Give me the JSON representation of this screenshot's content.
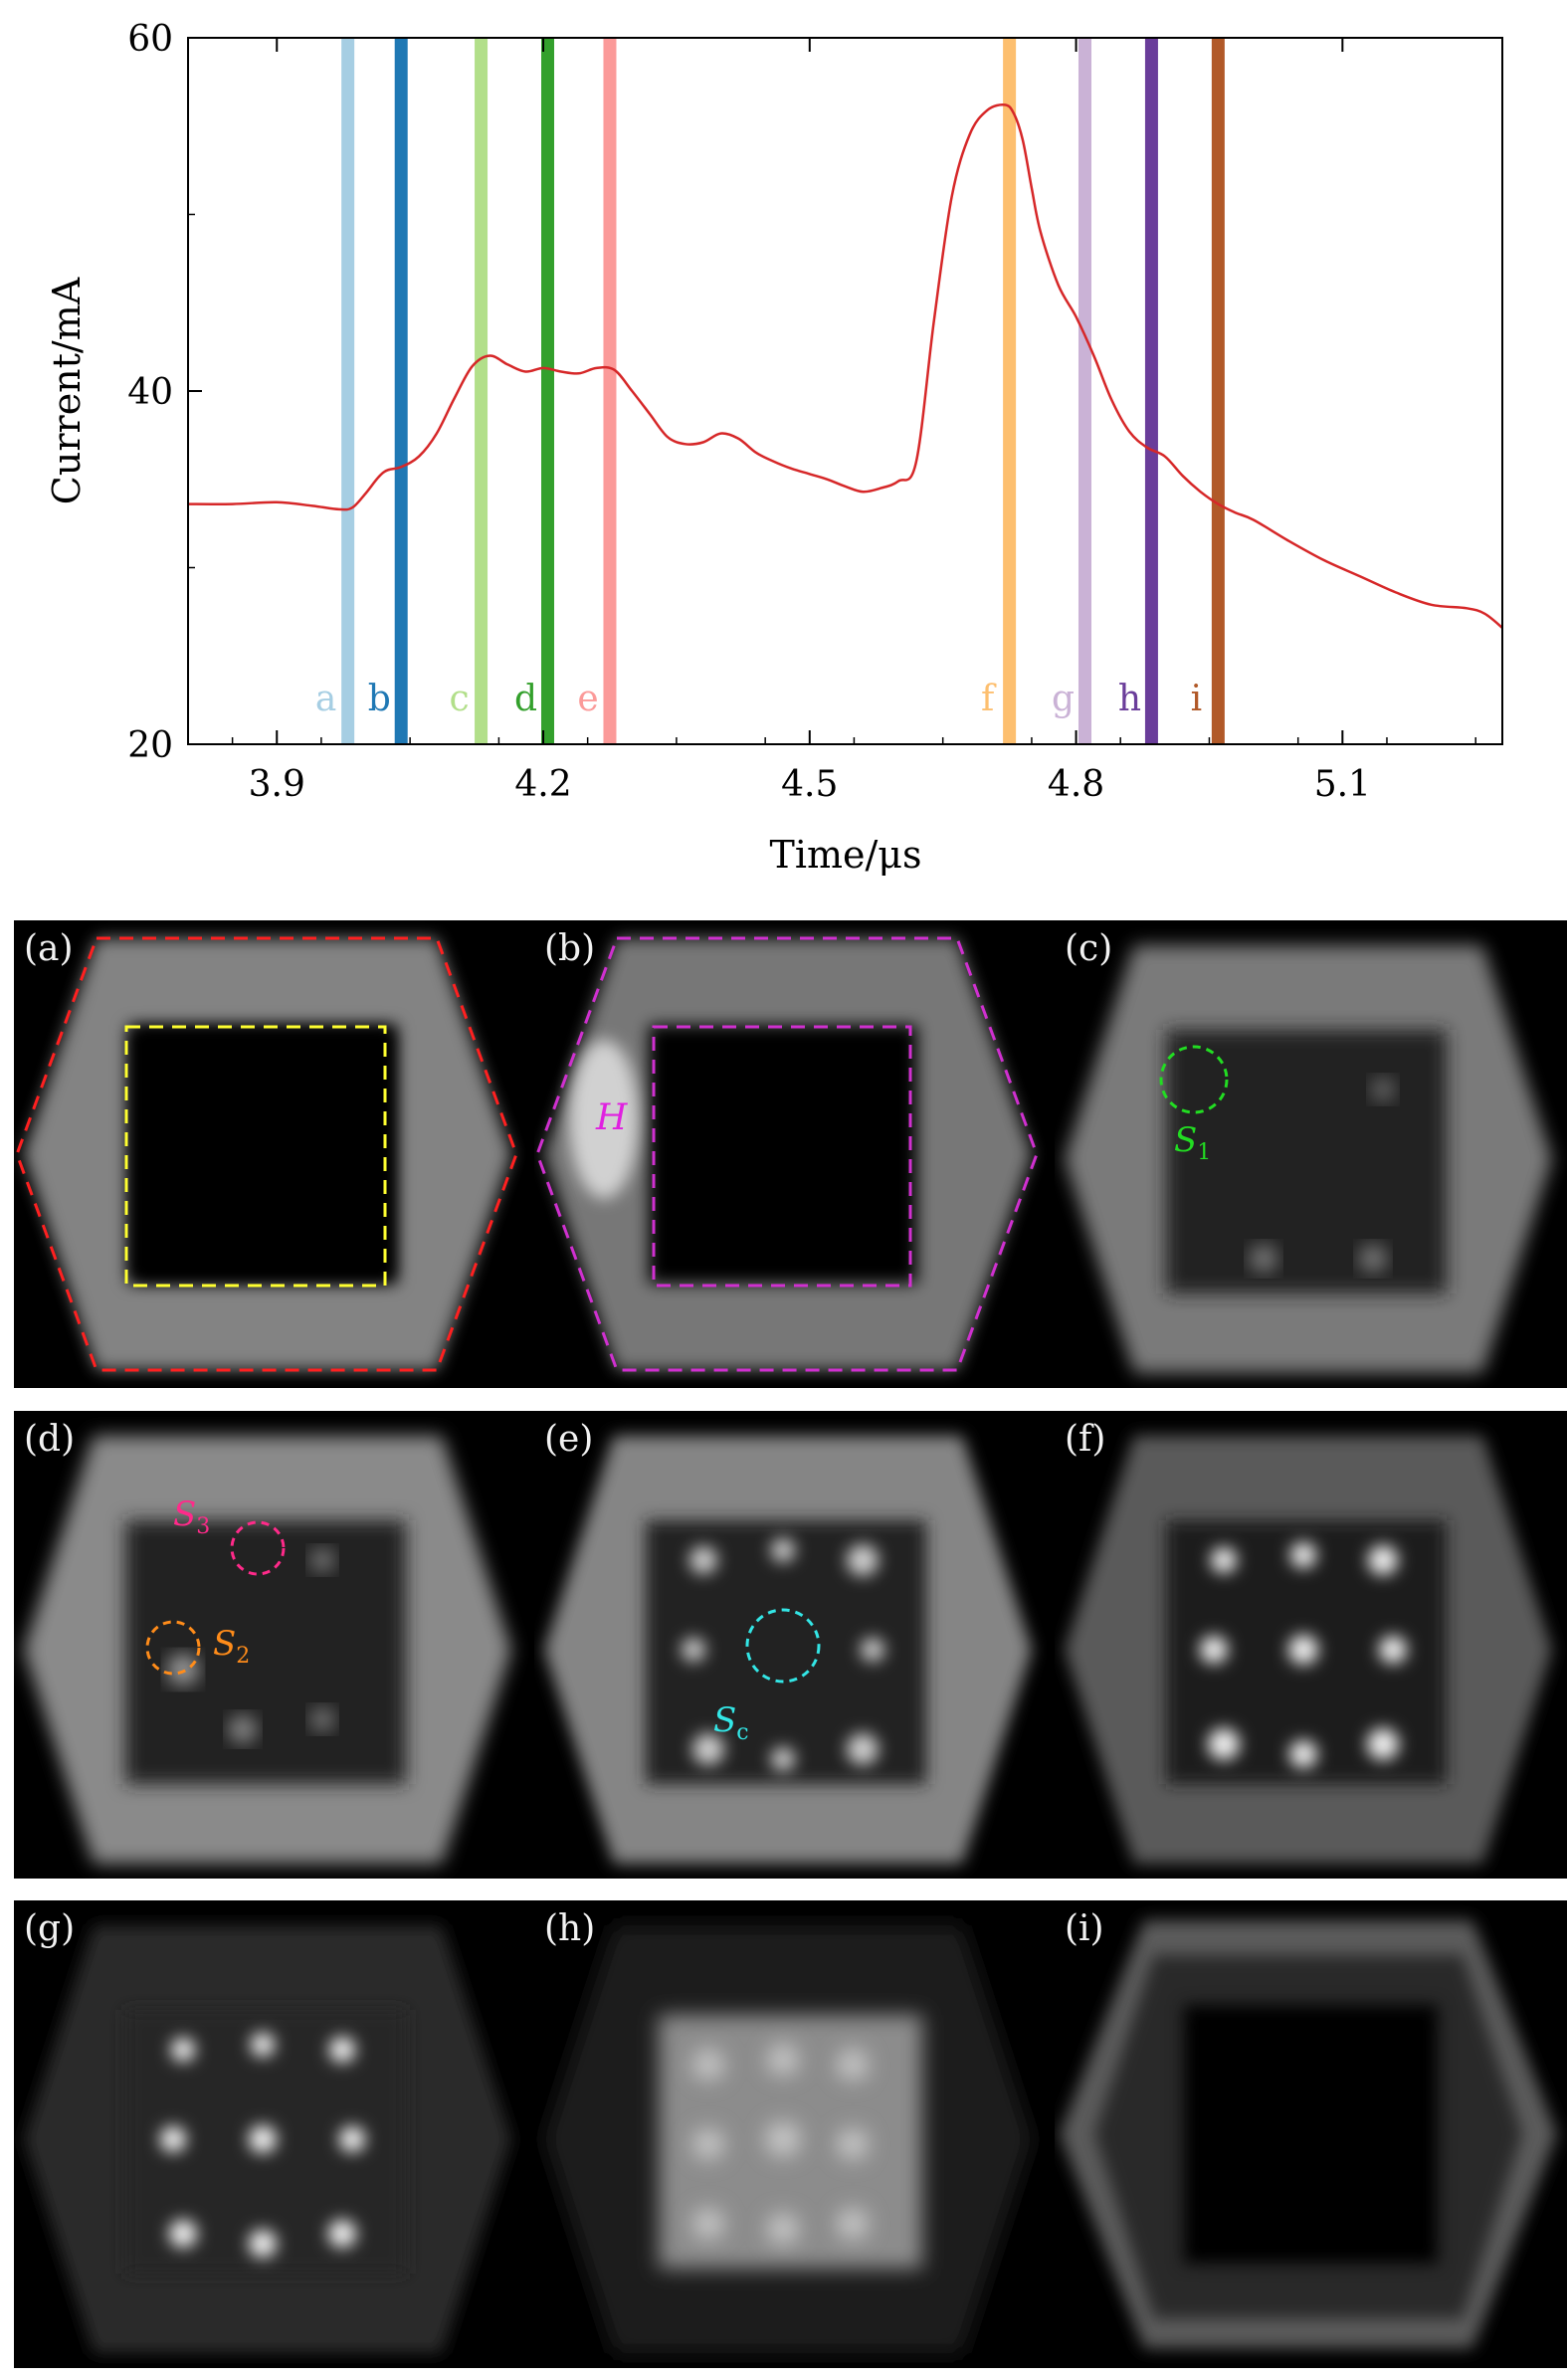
{
  "chart_data": {
    "type": "line",
    "title": "",
    "xlabel": "Time/μs",
    "ylabel": "Current/mA",
    "xlim": [
      3.8,
      5.28
    ],
    "ylim": [
      20,
      60
    ],
    "xticks": [
      "3.9",
      "4.2",
      "4.5",
      "4.8",
      "5.1"
    ],
    "xtick_values": [
      3.9,
      4.2,
      4.5,
      4.8,
      5.1
    ],
    "yticks": [
      "20",
      "40",
      "60"
    ],
    "ytick_values": [
      20,
      40,
      60
    ],
    "series": [
      {
        "name": "current",
        "color": "#d62728",
        "x": [
          3.8,
          3.85,
          3.9,
          3.94,
          3.97,
          3.985,
          4.0,
          4.02,
          4.04,
          4.06,
          4.08,
          4.1,
          4.12,
          4.14,
          4.16,
          4.18,
          4.2,
          4.22,
          4.24,
          4.26,
          4.28,
          4.3,
          4.32,
          4.34,
          4.36,
          4.38,
          4.4,
          4.42,
          4.44,
          4.46,
          4.48,
          4.5,
          4.52,
          4.54,
          4.56,
          4.58,
          4.6,
          4.62,
          4.64,
          4.66,
          4.68,
          4.7,
          4.72,
          4.73,
          4.74,
          4.75,
          4.76,
          4.78,
          4.8,
          4.82,
          4.84,
          4.86,
          4.88,
          4.9,
          4.92,
          4.94,
          4.96,
          4.98,
          5.0,
          5.04,
          5.08,
          5.12,
          5.16,
          5.2,
          5.24,
          5.26,
          5.28
        ],
        "y": [
          33.6,
          33.6,
          33.7,
          33.5,
          33.3,
          33.4,
          34.2,
          35.4,
          35.7,
          36.3,
          37.6,
          39.6,
          41.4,
          42.0,
          41.5,
          41.1,
          41.3,
          41.1,
          41.0,
          41.3,
          41.2,
          40.0,
          38.7,
          37.4,
          37.0,
          37.1,
          37.6,
          37.3,
          36.5,
          36.0,
          35.6,
          35.3,
          35.0,
          34.6,
          34.3,
          34.5,
          34.9,
          36.0,
          44.0,
          51.0,
          54.5,
          55.9,
          56.2,
          55.7,
          54.2,
          51.5,
          49.0,
          46.0,
          44.2,
          42.0,
          39.5,
          37.7,
          36.8,
          36.3,
          35.2,
          34.3,
          33.6,
          33.1,
          32.7,
          31.5,
          30.4,
          29.5,
          28.6,
          27.9,
          27.7,
          27.4,
          26.6
        ]
      }
    ],
    "markers": [
      {
        "label": "a",
        "x": 3.98,
        "color": "#a6cee3"
      },
      {
        "label": "b",
        "x": 4.04,
        "color": "#1f78b4"
      },
      {
        "label": "c",
        "x": 4.13,
        "color": "#b2df8a"
      },
      {
        "label": "d",
        "x": 4.205,
        "color": "#33a02c"
      },
      {
        "label": "e",
        "x": 4.275,
        "color": "#fb9a99"
      },
      {
        "label": "f",
        "x": 4.725,
        "color": "#fdbf6f"
      },
      {
        "label": "g",
        "x": 4.81,
        "color": "#cab2d6"
      },
      {
        "label": "h",
        "x": 4.885,
        "color": "#6a3d9a"
      },
      {
        "label": "i",
        "x": 4.96,
        "color": "#b15928"
      }
    ]
  },
  "panels": [
    {
      "label": "(a)"
    },
    {
      "label": "(b)"
    },
    {
      "label": "(c)"
    },
    {
      "label": "(d)"
    },
    {
      "label": "(e)"
    },
    {
      "label": "(f)"
    },
    {
      "label": "(g)"
    },
    {
      "label": "(h)"
    },
    {
      "label": "(i)"
    }
  ],
  "annotations": {
    "H": {
      "text": "H",
      "color": "#e020e0"
    },
    "S1": {
      "letter": "S",
      "sub": "1",
      "color": "#22dd22"
    },
    "S3": {
      "letter": "S",
      "sub": "3",
      "color": "#ff2a8a"
    },
    "S2": {
      "letter": "S",
      "sub": "2",
      "color": "#ff8c1a"
    },
    "Sc": {
      "letter": "S",
      "sub": "c",
      "color": "#33e6e6"
    }
  },
  "colors": {
    "outline_red": "#ff2020",
    "outline_yellow": "#ffff30",
    "outline_magenta": "#d030d0"
  }
}
